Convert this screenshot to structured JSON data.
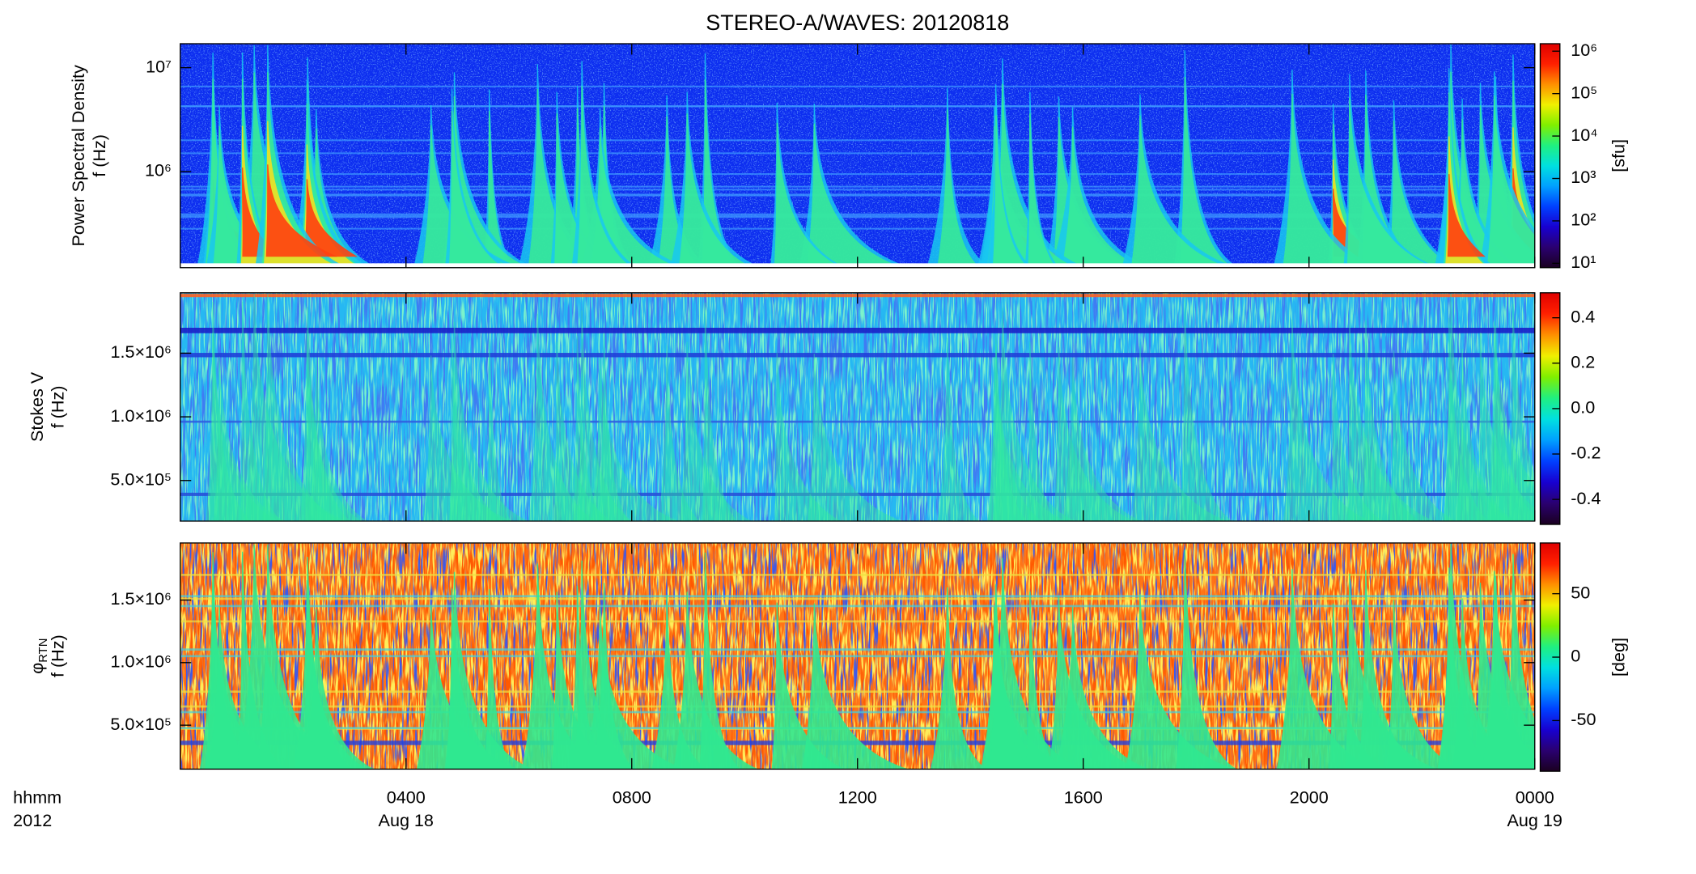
{
  "title": "STEREO-A/WAVES: 20120818",
  "chart_data": [
    {
      "type": "spectrogram",
      "ylabel": "Power Spectral Density",
      "ylabel2": "f (Hz)",
      "ylog": true,
      "xlim": [
        0,
        24
      ],
      "ylim": [
        119000,
        17000000
      ],
      "yticks": [
        {
          "value": 1000000,
          "label": "10⁶"
        },
        {
          "value": 10000000,
          "label": "10⁷"
        }
      ],
      "colorbar": {
        "log": true,
        "lim": [
          7.9,
          1500000
        ],
        "label": "[sfu]",
        "ticks": [
          {
            "value": 10,
            "label": "10¹"
          },
          {
            "value": 100,
            "label": "10²"
          },
          {
            "value": 1000,
            "label": "10³"
          },
          {
            "value": 10000,
            "label": "10⁴"
          },
          {
            "value": 100000,
            "label": "10⁵"
          },
          {
            "value": 1000000,
            "label": "10⁶"
          }
        ],
        "colors": [
          "#1a0020",
          "#2a0070",
          "#1800d0",
          "#0040ff",
          "#00a0ff",
          "#00e0e0",
          "#20f080",
          "#80f000",
          "#f0f000",
          "#ff9000",
          "#ff2000",
          "#e00000"
        ]
      }
    },
    {
      "type": "spectrogram",
      "ylabel": "Stokes V",
      "ylabel2": "f (Hz)",
      "ylog": false,
      "xlim": [
        0,
        24
      ],
      "ylim": [
        181000,
        1974000
      ],
      "yticks": [
        {
          "value": 500000,
          "label": "5.0×10⁵"
        },
        {
          "value": 1000000,
          "label": "1.0×10⁶"
        },
        {
          "value": 1500000,
          "label": "1.5×10⁶"
        }
      ],
      "colorbar": {
        "log": false,
        "lim": [
          -0.51,
          0.51
        ],
        "ticks": [
          -0.4,
          -0.2,
          {
            "value": 0,
            "label": "0.0"
          },
          0.2,
          0.4
        ],
        "colors": [
          "#1a0020",
          "#2a0070",
          "#1800d0",
          "#0040ff",
          "#00a0ff",
          "#00e0e0",
          "#20f080",
          "#80f000",
          "#f0f000",
          "#ff9000",
          "#ff2000",
          "#e00000"
        ]
      }
    },
    {
      "type": "spectrogram",
      "ylabel": "φ",
      "ylabel_sub": "RTN",
      "ylabel2": "f (Hz)",
      "ylog": false,
      "xlim": [
        0,
        24
      ],
      "ylim": [
        149000,
        1956000
      ],
      "yticks": [
        {
          "value": 500000,
          "label": "5.0×10⁵"
        },
        {
          "value": 1000000,
          "label": "1.0×10⁶"
        },
        {
          "value": 1500000,
          "label": "1.5×10⁶"
        }
      ],
      "xticks": [
        {
          "value": 4,
          "label": "0400"
        },
        {
          "value": 8,
          "label": "0800"
        },
        {
          "value": 12,
          "label": "1200"
        },
        {
          "value": 16,
          "label": "1600"
        },
        {
          "value": 20,
          "label": "2000"
        },
        {
          "value": 24,
          "label": "0000"
        }
      ],
      "xdates": [
        {
          "value": 4,
          "label": "Aug 18"
        },
        {
          "value": 24,
          "label": "Aug 19"
        }
      ],
      "xlabel": "hhmm",
      "xlabel2": "2012",
      "colorbar": {
        "log": false,
        "lim": [
          -90,
          90
        ],
        "label": "[deg]",
        "ticks": [
          -50,
          0,
          50
        ],
        "colors": [
          "#1a0020",
          "#2a0070",
          "#1800d0",
          "#0040ff",
          "#00a0ff",
          "#00e0e0",
          "#20f080",
          "#80f000",
          "#f0f000",
          "#ff9000",
          "#ff2000",
          "#e00000"
        ]
      }
    }
  ]
}
